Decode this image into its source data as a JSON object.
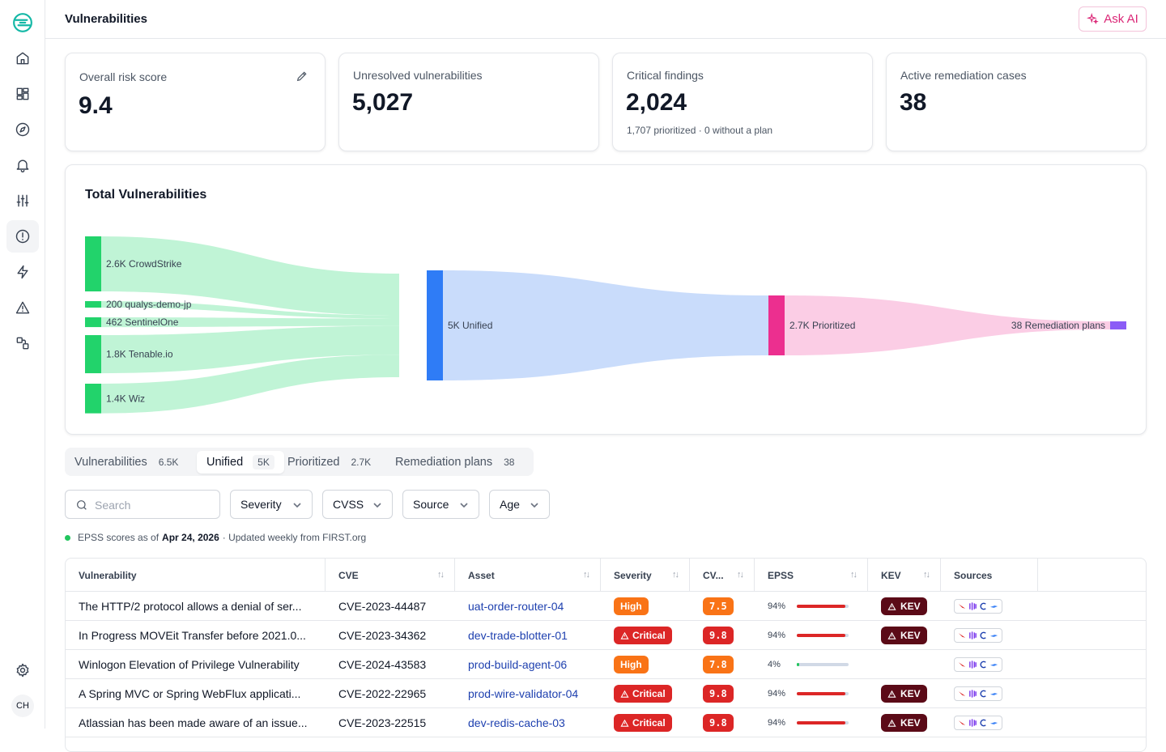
{
  "header": {
    "title": "Vulnerabilities",
    "ask_ai_label": "Ask AI"
  },
  "sidebar": {
    "items": [
      "logo",
      "home",
      "dashboards",
      "explore",
      "alerts",
      "settings-sliders",
      "vulnerabilities",
      "automations",
      "issues",
      "integrations"
    ],
    "active": "vulnerabilities",
    "avatar_initials": "CH"
  },
  "cards": [
    {
      "label": "Overall risk score",
      "value": "9.4",
      "sub": ""
    },
    {
      "label": "Unresolved vulnerabilities",
      "value": "5,027",
      "sub": ""
    },
    {
      "label": "Critical findings",
      "value": "2,024",
      "sub": "1,707 prioritized · 0 without a plan"
    },
    {
      "label": "Active remediation cases",
      "value": "38",
      "sub": ""
    }
  ],
  "chart_data": {
    "type": "sankey",
    "title": "Total Vulnerabilities",
    "nodes": [
      {
        "id": "crowdstrike",
        "label": "2.6K CrowdStrike",
        "value": 2600,
        "color": "#22d36b"
      },
      {
        "id": "qualys",
        "label": "200 qualys-demo-jp",
        "value": 200,
        "color": "#22d36b"
      },
      {
        "id": "sentinelone",
        "label": "462 SentinelOne",
        "value": 462,
        "color": "#22d36b"
      },
      {
        "id": "tenable",
        "label": "1.8K Tenable.io",
        "value": 1800,
        "color": "#22d36b"
      },
      {
        "id": "wiz",
        "label": "1.4K Wiz",
        "value": 1400,
        "color": "#22d36b"
      },
      {
        "id": "unified",
        "label": "5K Unified",
        "value": 5000,
        "color": "#2f7cf6"
      },
      {
        "id": "prioritized",
        "label": "2.7K Prioritized",
        "value": 2700,
        "color": "#ec2f8f"
      },
      {
        "id": "remediation",
        "label": "38 Remediation plans",
        "value": 38,
        "color": "#8b5cf6"
      }
    ],
    "links": [
      {
        "source": "crowdstrike",
        "target": "unified",
        "value": 2600
      },
      {
        "source": "qualys",
        "target": "unified",
        "value": 200
      },
      {
        "source": "sentinelone",
        "target": "unified",
        "value": 462
      },
      {
        "source": "tenable",
        "target": "unified",
        "value": 1800
      },
      {
        "source": "wiz",
        "target": "unified",
        "value": 1400
      },
      {
        "source": "unified",
        "target": "prioritized",
        "value": 2700
      },
      {
        "source": "prioritized",
        "target": "remediation",
        "value": 38
      }
    ],
    "link_colors": {
      "sources": "#c0f4d6",
      "unified": "#c9dcfb",
      "prioritized": "#fbcde5"
    }
  },
  "tabs": [
    {
      "label": "Vulnerabilities",
      "count": "6.5K",
      "active": false
    },
    {
      "label": "Unified",
      "count": "5K",
      "active": true
    },
    {
      "label": "Prioritized",
      "count": "2.7K",
      "active": false
    },
    {
      "label": "Remediation plans",
      "count": "38",
      "active": false
    }
  ],
  "filters": {
    "search_placeholder": "Search",
    "dropdowns": [
      "Severity",
      "CVSS",
      "Source",
      "Age"
    ]
  },
  "epss_note": {
    "prefix": "EPSS scores as of",
    "date": "Apr 24, 2026",
    "suffix": "· Updated weekly from FIRST.org"
  },
  "table": {
    "columns": [
      "Vulnerability",
      "CVE",
      "Asset",
      "Severity",
      "CV...",
      "EPSS",
      "KEV",
      "Sources"
    ],
    "rows": [
      {
        "vulnerability": "The HTTP/2 protocol allows a denial of ser...",
        "cve": "CVE-2023-44487",
        "asset": "uat-order-router-04",
        "severity": "High",
        "cvss": "7.5",
        "epss": "94%",
        "epss_level": 0.94,
        "kev": "KEV"
      },
      {
        "vulnerability": "In Progress MOVEit Transfer before 2021.0...",
        "cve": "CVE-2023-34362",
        "asset": "dev-trade-blotter-01",
        "severity": "Critical",
        "cvss": "9.8",
        "epss": "94%",
        "epss_level": 0.94,
        "kev": "KEV"
      },
      {
        "vulnerability": "Winlogon Elevation of Privilege Vulnerability",
        "cve": "CVE-2024-43583",
        "asset": "prod-build-agent-06",
        "severity": "High",
        "cvss": "7.8",
        "epss": "4%",
        "epss_level": 0.04,
        "kev": ""
      },
      {
        "vulnerability": "A Spring MVC or Spring WebFlux applicati...",
        "cve": "CVE-2022-22965",
        "asset": "prod-wire-validator-04",
        "severity": "Critical",
        "cvss": "9.8",
        "epss": "94%",
        "epss_level": 0.94,
        "kev": "KEV"
      },
      {
        "vulnerability": "Atlassian has been made aware of an issue...",
        "cve": "CVE-2023-22515",
        "asset": "dev-redis-cache-03",
        "severity": "Critical",
        "cvss": "9.8",
        "epss": "94%",
        "epss_level": 0.94,
        "kev": "KEV"
      }
    ]
  },
  "colors": {
    "accent": "#db2777",
    "high": "#f97316",
    "critical": "#dc2626",
    "kev": "#5b0a17",
    "link": "#1e40af"
  }
}
